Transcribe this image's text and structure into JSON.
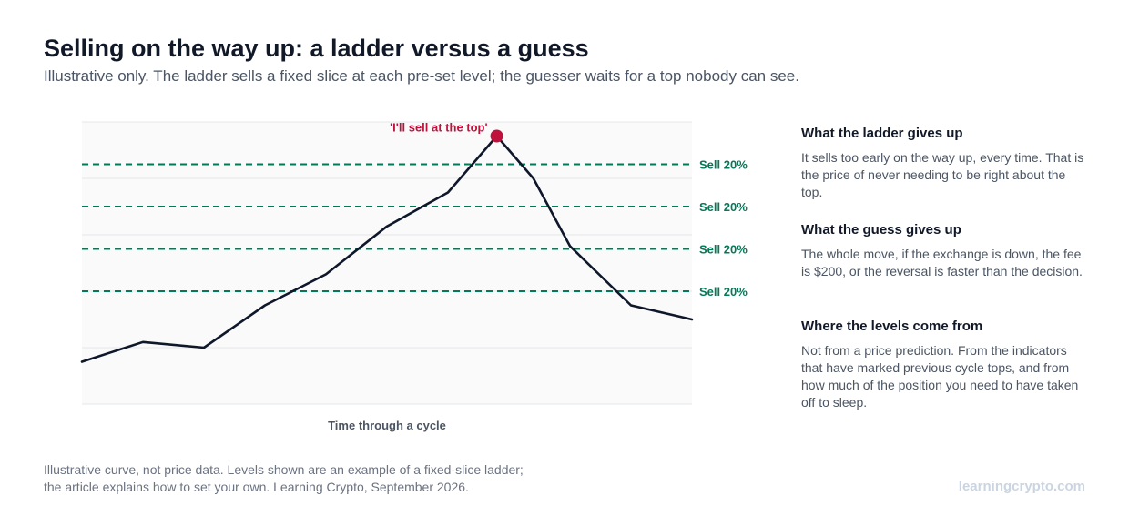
{
  "header": {
    "title": "Selling on the way up: a ladder versus a guess",
    "subtitle": "Illustrative only. The ladder sells a fixed slice at each pre-set level; the guesser waits for a top nobody can see."
  },
  "chart_data": {
    "type": "line",
    "title": "",
    "xlabel": "Time through a cycle",
    "ylabel": "",
    "x": [
      0,
      1,
      2,
      3,
      4,
      5,
      6,
      6.8,
      7.4,
      8,
      9,
      10
    ],
    "ylim": [
      0,
      100
    ],
    "grid": true,
    "series": [
      {
        "values": [
          15,
          22,
          20,
          35,
          46,
          63,
          75,
          95,
          80,
          56,
          35,
          30
        ]
      }
    ],
    "ladder_levels": [
      {
        "value": 85,
        "label": "Sell 20%"
      },
      {
        "value": 70,
        "label": "Sell 20%"
      },
      {
        "value": 55,
        "label": "Sell 20%"
      },
      {
        "value": 40,
        "label": "Sell 20%"
      }
    ],
    "peak_annotation": {
      "x": 6.8,
      "y": 95,
      "label": "'I'll sell at the top'"
    }
  },
  "colors": {
    "line": "#0f172a",
    "ladder": "#047857",
    "peak": "#be123c",
    "plot_bg": "#fafafa",
    "grid": "#e5e7eb"
  },
  "sidebar": {
    "sections": [
      {
        "heading": "What the ladder gives up",
        "lines": [
          "It sells too early on the way up, every time. That is",
          "the price of never needing to be right about the",
          "top."
        ]
      },
      {
        "heading": "What the guess gives up",
        "lines": [
          "The whole move, if the exchange is down, the fee",
          "is $200, or the reversal is faster than the decision."
        ]
      },
      {
        "heading": "Where the levels come from",
        "lines": [
          "Not from a price prediction. From the indicators",
          "that have marked previous cycle tops, and from",
          "how much of the position you need to have taken",
          "off to sleep."
        ]
      }
    ]
  },
  "footer": {
    "note_lines": [
      "Illustrative curve, not price data. Levels shown are an example of a fixed-slice ladder;",
      "the article explains how to set your own. Learning Crypto, September 2026."
    ],
    "brand": "learningcrypto.com"
  }
}
